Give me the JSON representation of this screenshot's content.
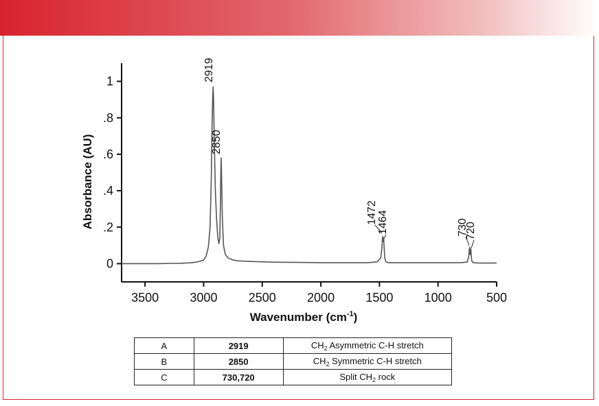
{
  "chart_data": {
    "type": "line",
    "xlabel_main": "Wavenumber (cm",
    "xlabel_sup": "-1",
    "xlabel_end": ")",
    "ylabel": "Absorbance (AU)",
    "x_reversed": true,
    "xlim": [
      3700,
      500
    ],
    "ylim": [
      -0.1,
      1.1
    ],
    "x_ticks": [
      3500,
      3000,
      2500,
      2000,
      1500,
      1000,
      500
    ],
    "x_tick_labels": [
      "3500",
      "3000",
      "2500",
      "2000",
      "1500",
      "1000",
      "500"
    ],
    "y_ticks": [
      1,
      0.8,
      0.6,
      0.4,
      0.2,
      0
    ],
    "y_tick_labels": [
      "1",
      ".8",
      ".6",
      ".4",
      ".2",
      "0"
    ],
    "grid": false,
    "line_color": "#555555",
    "series": [
      {
        "x": [
          3700,
          3400,
          3200,
          3100,
          3050,
          3000,
          2980,
          2960,
          2945,
          2935,
          2928,
          2922,
          2919,
          2915,
          2908,
          2900,
          2890,
          2880,
          2870,
          2862,
          2857,
          2853,
          2850,
          2846,
          2840,
          2830,
          2815,
          2790,
          2750,
          2700,
          2600,
          2500,
          2400,
          2200,
          2000,
          1800,
          1600,
          1520,
          1490,
          1480,
          1474,
          1472,
          1468,
          1466,
          1464,
          1460,
          1455,
          1445,
          1420,
          1300,
          1100,
          900,
          800,
          750,
          738,
          733,
          730,
          726,
          722,
          720,
          716,
          712,
          700,
          650,
          600,
          550,
          500
        ],
        "y": [
          0.0,
          0.0,
          0.002,
          0.005,
          0.01,
          0.02,
          0.04,
          0.09,
          0.2,
          0.45,
          0.75,
          0.92,
          0.97,
          0.9,
          0.65,
          0.4,
          0.25,
          0.15,
          0.11,
          0.14,
          0.32,
          0.5,
          0.58,
          0.45,
          0.25,
          0.1,
          0.05,
          0.03,
          0.02,
          0.015,
          0.012,
          0.01,
          0.008,
          0.007,
          0.005,
          0.005,
          0.005,
          0.01,
          0.03,
          0.08,
          0.14,
          0.15,
          0.12,
          0.13,
          0.14,
          0.09,
          0.03,
          0.01,
          0.005,
          0.005,
          0.005,
          0.005,
          0.005,
          0.01,
          0.04,
          0.08,
          0.09,
          0.05,
          0.07,
          0.08,
          0.04,
          0.015,
          0.005,
          0.003,
          0.003,
          0.003,
          0.004
        ]
      }
    ],
    "annotations": [
      {
        "text": "2919",
        "x": 2919
      },
      {
        "text": "2850",
        "x": 2850
      },
      {
        "text": "1472",
        "x": 1472
      },
      {
        "text": "1464",
        "x": 1464
      },
      {
        "text": "730",
        "x": 730
      },
      {
        "text": "720",
        "x": 720
      }
    ]
  },
  "table": {
    "rows": [
      {
        "label": "A",
        "wavenumber": "2919",
        "desc_pre": "CH",
        "desc_sub": "2",
        "desc_post": " Asymmetric C-H stretch"
      },
      {
        "label": "B",
        "wavenumber": "2850",
        "desc_pre": "CH",
        "desc_sub": "2",
        "desc_post": " Symmetric C-H stretch"
      },
      {
        "label": "C",
        "wavenumber": "730,720",
        "desc_pre": "Split CH",
        "desc_sub": "2",
        "desc_post": " rock"
      }
    ]
  },
  "colors": {
    "accent": "#d8232f",
    "axis": "#111111",
    "line": "#555555"
  }
}
